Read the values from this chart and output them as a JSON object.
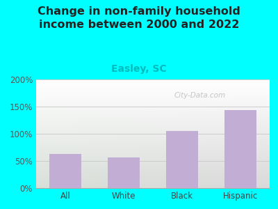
{
  "title": "Change in non-family household\nincome between 2000 and 2022",
  "subtitle": "Easley, SC",
  "categories": [
    "All",
    "White",
    "Black",
    "Hispanic"
  ],
  "values": [
    63,
    57,
    105,
    144
  ],
  "bar_color": "#c2aed4",
  "title_fontsize": 11.5,
  "subtitle_fontsize": 10,
  "subtitle_color": "#00bbbb",
  "title_color": "#222222",
  "background_outer": "#00ffff",
  "ylim": [
    0,
    200
  ],
  "yticks": [
    0,
    50,
    100,
    150,
    200
  ],
  "ytick_labels": [
    "0%",
    "50%",
    "100%",
    "150%",
    "200%"
  ],
  "watermark": "City-Data.com"
}
